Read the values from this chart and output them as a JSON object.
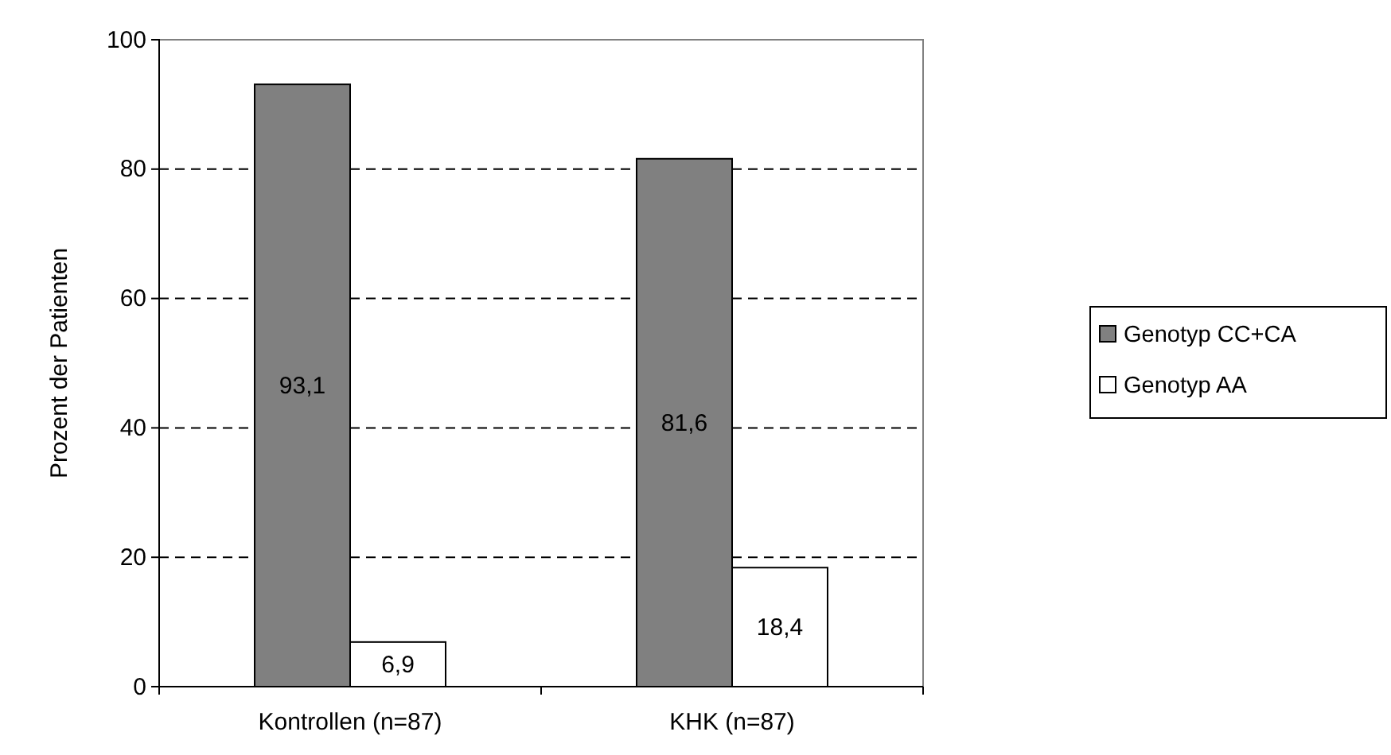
{
  "chart_data": {
    "type": "bar",
    "ylabel": "Prozent der Patienten",
    "categories": [
      "Kontrollen (n=87)",
      "KHK (n=87)"
    ],
    "series": [
      {
        "name": "Genotyp CC+CA",
        "color": "#808080",
        "values": [
          93.1,
          81.6
        ],
        "value_labels": [
          "93,1",
          "81,6"
        ]
      },
      {
        "name": "Genotyp AA",
        "color": "#ffffff",
        "values": [
          6.9,
          18.4
        ],
        "value_labels": [
          "6,9",
          "18,4"
        ]
      }
    ],
    "ylim": [
      0,
      100
    ],
    "yticks": [
      0,
      20,
      40,
      60,
      80,
      100
    ],
    "grid": "y",
    "legend": "right"
  }
}
